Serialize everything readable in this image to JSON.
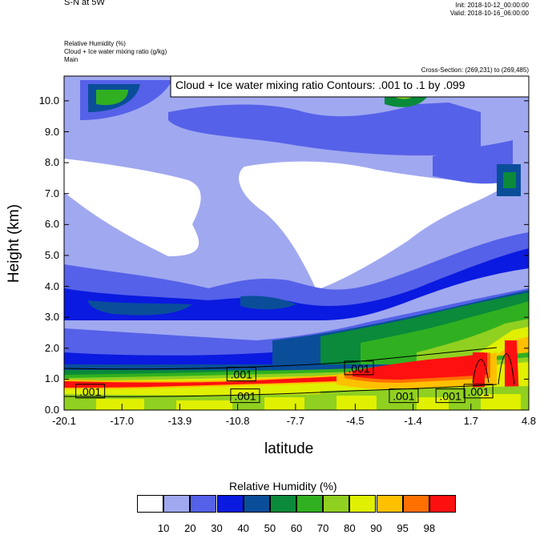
{
  "header": {
    "left_title": "S-N at 5W",
    "init": "Init: 2018-10-12_00:00:00",
    "valid": "Valid: 2018-10-16_06:00:00",
    "field1": "Relative Humidity   (%)",
    "field2": "Cloud + Ice water mixing ratio   (g/kg)",
    "field3": "Main",
    "cross_section": "Cross-Section: (269,231) to (269,485)"
  },
  "chart_data": {
    "type": "heatmap",
    "title": "",
    "contour_annotation": "Cloud + Ice water mixing ratio Contours: .001 to .1 by .099",
    "xlabel": "latitude",
    "ylabel": "Height (km)",
    "xlim": [
      -20.1,
      4.8
    ],
    "ylim": [
      0.0,
      10.8
    ],
    "x_ticks": [
      "-20.1",
      "-17.0",
      "-13.9",
      "-10.8",
      "-7.7",
      "-4.5",
      "-1.4",
      "1.7",
      "4.8"
    ],
    "x_tick_values": [
      -20.1,
      -17.0,
      -13.9,
      -10.8,
      -7.7,
      -4.5,
      -1.4,
      1.7,
      4.8
    ],
    "y_ticks": [
      "0.0",
      "1.0",
      "2.0",
      "3.0",
      "4.0",
      "5.0",
      "6.0",
      "7.0",
      "8.0",
      "9.0",
      "10.0"
    ],
    "y_tick_values": [
      0,
      1,
      2,
      3,
      4,
      5,
      6,
      7,
      8,
      9,
      10
    ],
    "contour_labels": [
      {
        "text": ".001",
        "x": -18.7,
        "y": 0.6
      },
      {
        "text": ".001",
        "x": -10.6,
        "y": 1.15
      },
      {
        "text": ".001",
        "x": -10.4,
        "y": 0.45
      },
      {
        "text": ".001",
        "x": -4.3,
        "y": 1.35
      },
      {
        "text": ".001",
        "x": -1.9,
        "y": 0.45
      },
      {
        "text": ".001",
        "x": 0.6,
        "y": 0.45
      },
      {
        "text": ".001",
        "x": 2.1,
        "y": 0.6
      }
    ],
    "colorbar": {
      "title": "Relative Humidity  (%)",
      "labels": [
        "10",
        "20",
        "30",
        "40",
        "50",
        "60",
        "70",
        "80",
        "90",
        "95",
        "98"
      ],
      "colors": [
        "#ffffff",
        "#a0a8f0",
        "#5561e8",
        "#0a1ae0",
        "#0a4e9a",
        "#0a8a3a",
        "#30b020",
        "#90d020",
        "#e0f000",
        "#ffc000",
        "#ff7000",
        "#ff1010"
      ]
    }
  }
}
